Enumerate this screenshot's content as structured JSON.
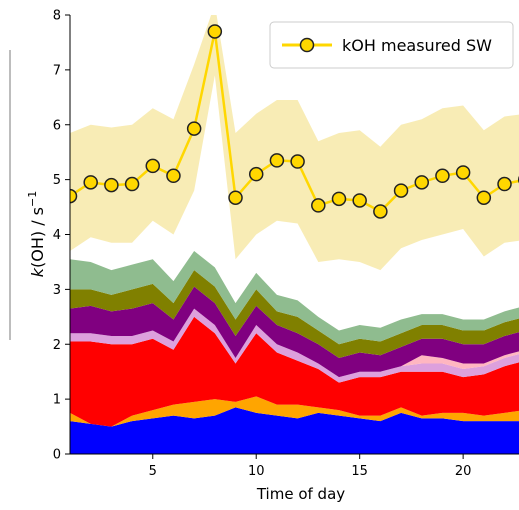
{
  "chart_data": {
    "type": "area",
    "x": [
      1,
      2,
      3,
      4,
      5,
      6,
      7,
      8,
      9,
      10,
      11,
      12,
      13,
      14,
      15,
      16,
      17,
      18,
      19,
      20,
      21,
      22,
      23
    ],
    "xlim": [
      1,
      22.7
    ],
    "ylim": [
      0,
      8
    ],
    "xticks": [
      5,
      10,
      15,
      20
    ],
    "yticks": [
      0,
      1,
      2,
      3,
      4,
      5,
      6,
      7,
      8
    ],
    "xlabel": "Time of day",
    "ylabel_italic": "k",
    "ylabel_rest": "(OH) / s",
    "ylabel_sup": "−1",
    "legend_position": "top-right",
    "stacked_layers": [
      {
        "color": "#0000ff",
        "values": [
          0.6,
          0.55,
          0.5,
          0.6,
          0.65,
          0.7,
          0.65,
          0.7,
          0.85,
          0.75,
          0.7,
          0.65,
          0.75,
          0.7,
          0.65,
          0.6,
          0.75,
          0.65,
          0.65,
          0.6,
          0.6,
          0.6,
          0.6
        ]
      },
      {
        "color": "#ffa500",
        "values": [
          0.15,
          0.0,
          0.0,
          0.1,
          0.15,
          0.2,
          0.3,
          0.3,
          0.1,
          0.3,
          0.2,
          0.25,
          0.1,
          0.1,
          0.05,
          0.1,
          0.1,
          0.05,
          0.1,
          0.15,
          0.1,
          0.15,
          0.2
        ]
      },
      {
        "color": "#ff0000",
        "values": [
          1.3,
          1.5,
          1.5,
          1.3,
          1.3,
          1.0,
          1.55,
          1.2,
          0.7,
          1.15,
          0.95,
          0.8,
          0.7,
          0.5,
          0.7,
          0.7,
          0.65,
          0.8,
          0.75,
          0.65,
          0.75,
          0.85,
          0.9
        ]
      },
      {
        "color": "#dda0dd",
        "values": [
          0.15,
          0.15,
          0.15,
          0.15,
          0.15,
          0.15,
          0.15,
          0.15,
          0.1,
          0.15,
          0.15,
          0.15,
          0.1,
          0.1,
          0.1,
          0.1,
          0.1,
          0.15,
          0.15,
          0.15,
          0.15,
          0.15,
          0.15
        ]
      },
      {
        "color": "#ffb6c1",
        "values": [
          0.0,
          0.0,
          0.0,
          0.0,
          0.0,
          0.0,
          0.0,
          0.0,
          0.0,
          0.0,
          0.0,
          0.0,
          0.0,
          0.0,
          0.0,
          0.0,
          0.0,
          0.15,
          0.1,
          0.1,
          0.05,
          0.05,
          0.05
        ]
      },
      {
        "color": "#800080",
        "values": [
          0.45,
          0.5,
          0.45,
          0.5,
          0.5,
          0.4,
          0.4,
          0.4,
          0.4,
          0.35,
          0.35,
          0.35,
          0.35,
          0.35,
          0.35,
          0.3,
          0.35,
          0.3,
          0.35,
          0.35,
          0.35,
          0.35,
          0.35
        ]
      },
      {
        "color": "#808000",
        "values": [
          0.35,
          0.3,
          0.3,
          0.35,
          0.35,
          0.3,
          0.3,
          0.3,
          0.3,
          0.3,
          0.25,
          0.3,
          0.25,
          0.25,
          0.25,
          0.25,
          0.25,
          0.25,
          0.25,
          0.25,
          0.25,
          0.25,
          0.25
        ]
      },
      {
        "color": "#8fbc8f",
        "values": [
          0.55,
          0.5,
          0.45,
          0.45,
          0.45,
          0.4,
          0.35,
          0.35,
          0.3,
          0.3,
          0.3,
          0.3,
          0.25,
          0.25,
          0.25,
          0.25,
          0.25,
          0.2,
          0.2,
          0.2,
          0.2,
          0.2,
          0.2
        ]
      }
    ],
    "series": [
      {
        "name": "kOH measured SW",
        "color": "#ffd700",
        "band_color": "#f7e9a8",
        "values": [
          4.7,
          4.95,
          4.9,
          4.92,
          5.25,
          5.07,
          5.93,
          7.7,
          4.67,
          5.1,
          5.35,
          5.33,
          4.53,
          4.65,
          4.62,
          4.42,
          4.8,
          4.95,
          5.07,
          5.13,
          4.67,
          4.92,
          5.0
        ],
        "upper": [
          5.85,
          6.0,
          5.95,
          6.0,
          6.3,
          6.1,
          7.1,
          8.2,
          5.85,
          6.2,
          6.45,
          6.45,
          5.7,
          5.85,
          5.9,
          5.6,
          6.0,
          6.1,
          6.3,
          6.35,
          5.9,
          6.15,
          6.2
        ],
        "lower": [
          3.7,
          3.95,
          3.85,
          3.85,
          4.25,
          4.0,
          4.8,
          6.9,
          3.55,
          4.0,
          4.25,
          4.2,
          3.5,
          3.55,
          3.5,
          3.35,
          3.75,
          3.9,
          4.0,
          4.1,
          3.6,
          3.85,
          3.9
        ]
      }
    ]
  }
}
